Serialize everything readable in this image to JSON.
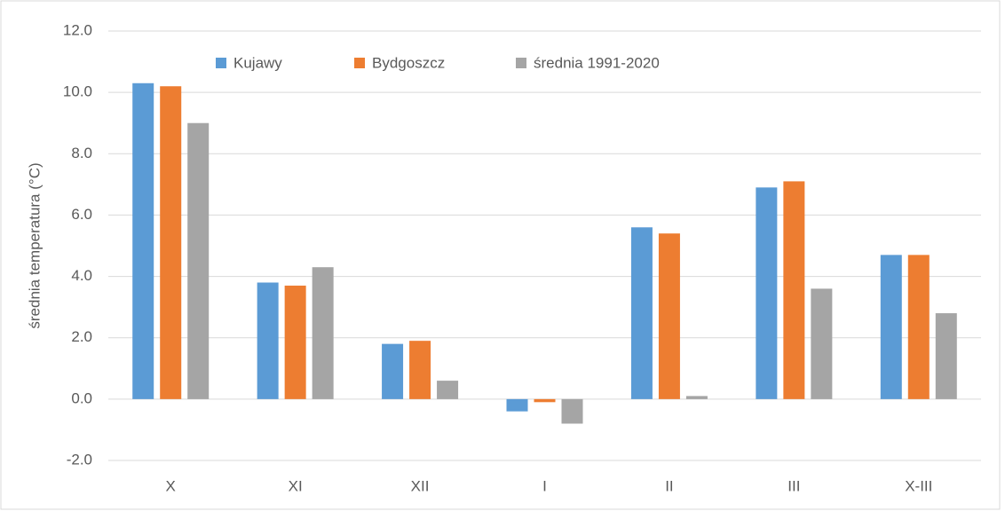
{
  "chart_data": {
    "type": "bar",
    "ylabel": "średnia temperatura (°C)",
    "categories": [
      "X",
      "XI",
      "XII",
      "I",
      "II",
      "III",
      "X-III"
    ],
    "series": [
      {
        "name": "Kujawy",
        "color": "#5b9bd5",
        "values": [
          10.3,
          3.8,
          1.8,
          -0.4,
          5.6,
          6.9,
          4.7
        ]
      },
      {
        "name": "Bydgoszcz",
        "color": "#ed7d31",
        "values": [
          10.2,
          3.7,
          1.9,
          -0.1,
          5.4,
          7.1,
          4.7
        ]
      },
      {
        "name": "średnia 1991-2020",
        "color": "#a5a5a5",
        "values": [
          9.0,
          4.3,
          0.6,
          -0.8,
          0.1,
          3.6,
          2.8
        ]
      }
    ],
    "ylim": [
      -2,
      12
    ],
    "yticks": [
      {
        "value": -2,
        "label": "-2.0"
      },
      {
        "value": 0,
        "label": "0.0"
      },
      {
        "value": 2,
        "label": "2.0"
      },
      {
        "value": 4,
        "label": "4.0"
      },
      {
        "value": 6,
        "label": "6.0"
      },
      {
        "value": 8,
        "label": "8.0"
      },
      {
        "value": 10,
        "label": "10.0"
      },
      {
        "value": 12,
        "label": "12.0"
      }
    ],
    "grid": true,
    "legend": "top"
  }
}
